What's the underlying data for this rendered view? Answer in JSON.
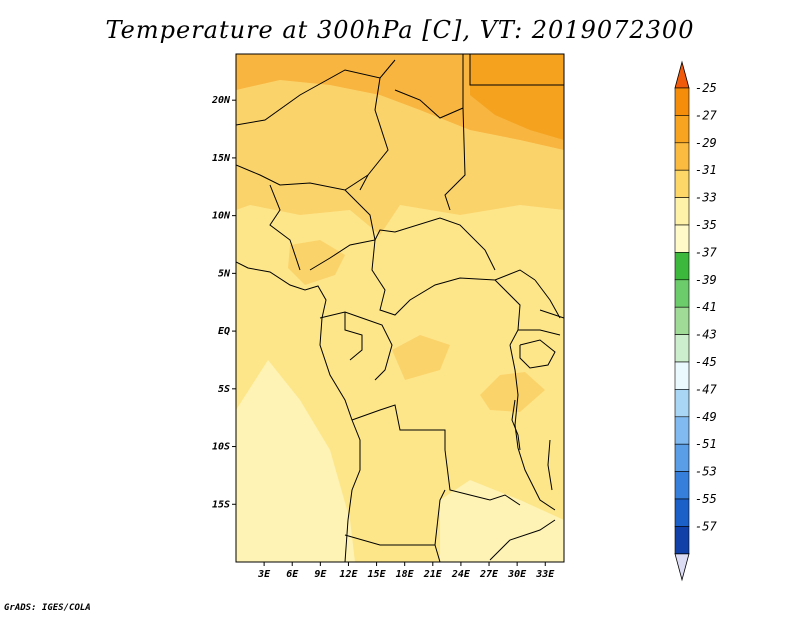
{
  "title": "Temperature at 300hPa [C], VT: 2019072300",
  "credit": "GrADS: IGES/COLA",
  "map": {
    "lon_range": [
      0,
      35
    ],
    "lat_range": [
      -20,
      24
    ],
    "lat_ticks": [
      "20N",
      "15N",
      "10N",
      "5N",
      "EQ",
      "5S",
      "10S",
      "15S"
    ],
    "lat_values": [
      20,
      15,
      10,
      5,
      0,
      -5,
      -10,
      -15
    ],
    "lon_ticks": [
      "3E",
      "6E",
      "9E",
      "12E",
      "15E",
      "18E",
      "21E",
      "24E",
      "27E",
      "30E",
      "33E"
    ],
    "lon_values": [
      3,
      6,
      9,
      12,
      15,
      18,
      21,
      24,
      27,
      30,
      33
    ],
    "fill_colors": {
      "le_-33_to_-31": "#fde68a",
      "-31_to_-29": "#fbd36b",
      "-29_to_-27": "#f8b540",
      "-27_to_-25": "#f5a21f",
      "-35_to_-33": "#fef3b4"
    }
  },
  "colorbar": {
    "labels": [
      "-25",
      "-27",
      "-29",
      "-31",
      "-33",
      "-35",
      "-37",
      "-39",
      "-41",
      "-43",
      "-45",
      "-47",
      "-49",
      "-51",
      "-53",
      "-55",
      "-57"
    ],
    "colors": [
      "#f05a0a",
      "#f58c0a",
      "#f8a420",
      "#fbbb40",
      "#fdd868",
      "#fef1a8",
      "#3cb83c",
      "#6ccc6c",
      "#a0dc98",
      "#cceecc",
      "#eaf9fd",
      "#a8d6f4",
      "#80baf0",
      "#5a9ee8",
      "#3680dc",
      "#1a60c8",
      "#1040a8",
      "#0a1a6e",
      "#dcdcf5"
    ],
    "top_arrow_color": "#f05a0a",
    "bottom_arrow_color": "#dcdcf5"
  }
}
